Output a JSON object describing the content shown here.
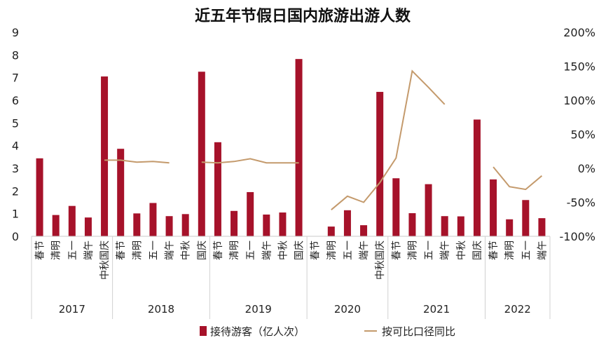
{
  "chart_data": {
    "type": "bar+line",
    "title": "近五年节假日国内旅游出游人数",
    "y_left": {
      "min": 0,
      "max": 9,
      "ticks": [
        "0",
        "1",
        "2",
        "3",
        "4",
        "5",
        "6",
        "7",
        "8",
        "9"
      ]
    },
    "y_right": {
      "min": -100,
      "max": 200,
      "ticks": [
        "-100%",
        "-50%",
        "0%",
        "50%",
        "100%",
        "150%",
        "200%"
      ]
    },
    "categories": [
      {
        "year": "2017",
        "label": "春节"
      },
      {
        "year": "2017",
        "label": "清明"
      },
      {
        "year": "2017",
        "label": "五一"
      },
      {
        "year": "2017",
        "label": "端午"
      },
      {
        "year": "2017",
        "label": "中秋国庆"
      },
      {
        "year": "2018",
        "label": "春节"
      },
      {
        "year": "2018",
        "label": "清明"
      },
      {
        "year": "2018",
        "label": "五一"
      },
      {
        "year": "2018",
        "label": "端午"
      },
      {
        "year": "2018",
        "label": "中秋"
      },
      {
        "year": "2018",
        "label": "国庆"
      },
      {
        "year": "2019",
        "label": "春节"
      },
      {
        "year": "2019",
        "label": "清明"
      },
      {
        "year": "2019",
        "label": "五一"
      },
      {
        "year": "2019",
        "label": "端午"
      },
      {
        "year": "2019",
        "label": "中秋"
      },
      {
        "year": "2019",
        "label": "国庆"
      },
      {
        "year": "2020",
        "label": "春节"
      },
      {
        "year": "2020",
        "label": "清明"
      },
      {
        "year": "2020",
        "label": "五一"
      },
      {
        "year": "2020",
        "label": "端午"
      },
      {
        "year": "2020",
        "label": "中秋国庆"
      },
      {
        "year": "2021",
        "label": "春节"
      },
      {
        "year": "2021",
        "label": "清明"
      },
      {
        "year": "2021",
        "label": "五一"
      },
      {
        "year": "2021",
        "label": "端午"
      },
      {
        "year": "2021",
        "label": "中秋"
      },
      {
        "year": "2021",
        "label": "国庆"
      },
      {
        "year": "2022",
        "label": "春节"
      },
      {
        "year": "2022",
        "label": "清明"
      },
      {
        "year": "2022",
        "label": "五一"
      },
      {
        "year": "2022",
        "label": "端午"
      }
    ],
    "years": [
      {
        "label": "2017",
        "start": 0,
        "end": 4
      },
      {
        "label": "2018",
        "start": 5,
        "end": 10
      },
      {
        "label": "2019",
        "start": 11,
        "end": 16
      },
      {
        "label": "2020",
        "start": 17,
        "end": 21
      },
      {
        "label": "2021",
        "start": 22,
        "end": 27
      },
      {
        "label": "2022",
        "start": 28,
        "end": 31
      }
    ],
    "series": [
      {
        "name": "接待游客（亿人次）",
        "type": "bar",
        "axis": "left",
        "color": "#a6122a",
        "values": [
          3.44,
          0.94,
          1.34,
          0.83,
          7.05,
          3.86,
          1.01,
          1.47,
          0.89,
          0.98,
          7.26,
          4.15,
          1.12,
          1.95,
          0.96,
          1.05,
          7.82,
          null,
          0.43,
          1.15,
          0.49,
          6.37,
          2.56,
          1.02,
          2.3,
          0.89,
          0.88,
          5.15,
          2.51,
          0.75,
          1.6,
          0.8
        ]
      },
      {
        "name": "按可比口径同比",
        "type": "line",
        "axis": "right",
        "color": "#c49a6c",
        "values": [
          null,
          null,
          null,
          null,
          12.0,
          12.0,
          9.0,
          10.0,
          8.0,
          null,
          9.0,
          8.0,
          10.0,
          14.0,
          8.0,
          8.0,
          8.0,
          null,
          -61.0,
          -41.0,
          -50.0,
          -21.0,
          15.0,
          143.0,
          119.0,
          94.0,
          null,
          null,
          2.0,
          -27.0,
          -31.0,
          -11.0
        ],
        "segments": [
          [
            4,
            8
          ],
          [
            10,
            16
          ],
          [
            18,
            25
          ],
          [
            28,
            31
          ]
        ]
      }
    ],
    "legend": {
      "position": "bottom-center"
    }
  }
}
